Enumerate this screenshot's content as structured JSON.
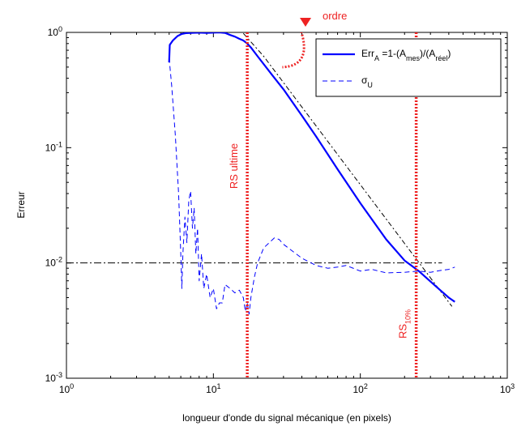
{
  "chart_data": {
    "type": "line",
    "title": "",
    "xlabel": "longueur d'onde du signal mécanique (en pixels)",
    "ylabel": "Erreur",
    "xscale": "log",
    "yscale": "log",
    "xlim": [
      1,
      1000
    ],
    "ylim": [
      0.001,
      1
    ],
    "x_tick_labels": [
      {
        "base": "10",
        "exp": "0"
      },
      {
        "base": "10",
        "exp": "1"
      },
      {
        "base": "10",
        "exp": "2"
      },
      {
        "base": "10",
        "exp": "3"
      }
    ],
    "y_tick_labels": [
      {
        "base": "10",
        "exp": "-3"
      },
      {
        "base": "10",
        "exp": "-2"
      },
      {
        "base": "10",
        "exp": "-1"
      },
      {
        "base": "10",
        "exp": "0"
      }
    ],
    "grid": false,
    "legend_position": "top-right",
    "colors": {
      "series": "#0000ff",
      "annotation": "#ee2222",
      "reference": "#000000"
    },
    "legend": [
      {
        "label_parts": [
          "Err",
          "A",
          " =1-(A",
          "mes",
          ")/(A",
          "réel",
          ")"
        ],
        "style": "solid"
      },
      {
        "label_parts": [
          "σ",
          "U"
        ],
        "style": "dashed"
      }
    ],
    "series": [
      {
        "id": "errA",
        "style": "solid",
        "x": [
          5,
          5.05,
          5.3,
          5.7,
          6.1,
          6.5,
          7,
          8,
          9,
          10,
          11,
          12,
          13,
          14,
          15,
          16,
          17,
          18,
          20,
          25,
          30,
          40,
          50,
          70,
          100,
          150,
          200,
          250,
          300,
          350,
          400,
          440
        ],
        "y": [
          0.55,
          0.78,
          0.85,
          0.93,
          0.97,
          0.985,
          0.99,
          0.995,
          0.99,
          0.995,
          1.0,
          0.99,
          0.95,
          0.92,
          0.88,
          0.85,
          0.8,
          0.74,
          0.62,
          0.43,
          0.32,
          0.19,
          0.125,
          0.065,
          0.033,
          0.016,
          0.0105,
          0.0085,
          0.0069,
          0.0058,
          0.005,
          0.0046
        ]
      },
      {
        "id": "sigmaU",
        "style": "dashed",
        "x": [
          5,
          5.2,
          5.5,
          5.8,
          6.0,
          6.1,
          6.2,
          6.4,
          6.6,
          6.8,
          7.0,
          7.2,
          7.4,
          7.6,
          7.8,
          8.0,
          8.3,
          8.6,
          9.0,
          9.5,
          10,
          10.5,
          11,
          11.5,
          12,
          13,
          14,
          15,
          16,
          16.5,
          17,
          17.5,
          18,
          19,
          20,
          22,
          24,
          26,
          28,
          30,
          35,
          40,
          50,
          60,
          70,
          80,
          100,
          120,
          150,
          200,
          250,
          300,
          350,
          400,
          440
        ],
        "y": [
          0.6,
          0.35,
          0.13,
          0.04,
          0.012,
          0.006,
          0.012,
          0.025,
          0.015,
          0.035,
          0.042,
          0.02,
          0.03,
          0.012,
          0.02,
          0.007,
          0.012,
          0.006,
          0.008,
          0.005,
          0.006,
          0.004,
          0.0045,
          0.0045,
          0.0065,
          0.006,
          0.0055,
          0.0058,
          0.005,
          0.0038,
          0.0045,
          0.0036,
          0.005,
          0.0075,
          0.01,
          0.0135,
          0.015,
          0.0165,
          0.016,
          0.0145,
          0.0125,
          0.011,
          0.0095,
          0.009,
          0.0092,
          0.0095,
          0.0085,
          0.0088,
          0.0082,
          0.0083,
          0.0085,
          0.0083,
          0.0086,
          0.0088,
          0.0092
        ]
      }
    ],
    "reference_lines": {
      "horizontal_level": 0.01,
      "horizontal_x_range": [
        1,
        360
      ],
      "slope_segment": {
        "x": [
          16,
          22,
          420
        ],
        "y": [
          0.98,
          0.62,
          0.0042
        ]
      }
    },
    "annotations": {
      "rs_ultime": {
        "label": "RS ultime",
        "x": 17
      },
      "rs_10": {
        "label": "RS",
        "sub": "10%",
        "x": 240
      },
      "ordre": {
        "label": "ordre"
      }
    }
  }
}
